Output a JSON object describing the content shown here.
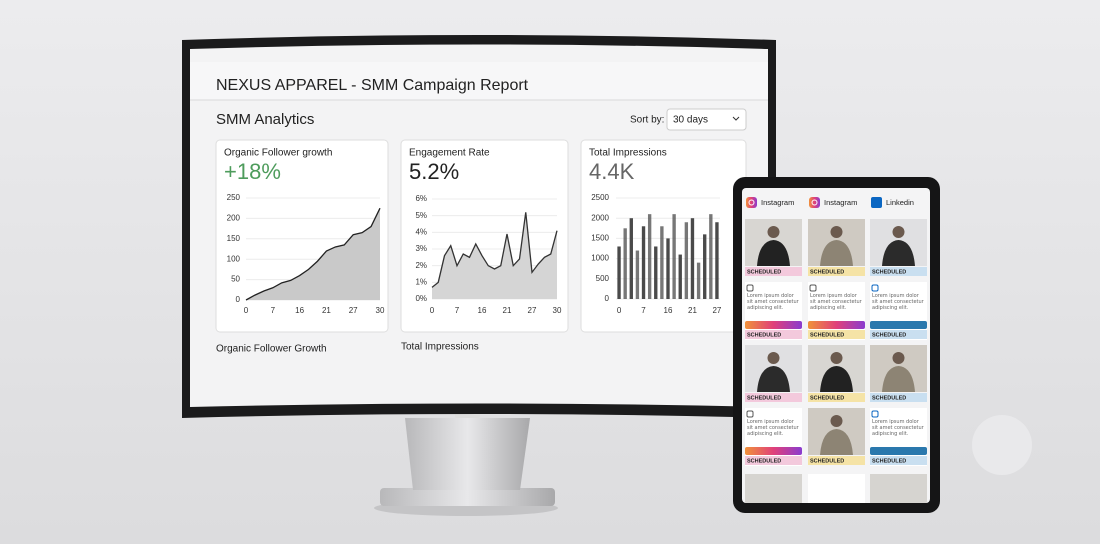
{
  "header": {
    "title": "NEXUS APPAREL - SMM Campaign Report",
    "section": "SMM Analytics",
    "sort_label": "Sort by:",
    "sort_value": "30 days"
  },
  "chart_data": [
    {
      "type": "area",
      "title": "Organic Follower growth",
      "headline": "+18%",
      "headline_color": "#4e9c5c",
      "color": "#222222",
      "fill": "#c9c9c9",
      "categories": [
        "0",
        null,
        null,
        "7",
        null,
        null,
        "16",
        null,
        null,
        "21",
        null,
        null,
        "27",
        null,
        null,
        "30"
      ],
      "values": [
        0,
        12,
        22,
        30,
        42,
        48,
        60,
        75,
        95,
        120,
        130,
        135,
        160,
        165,
        180,
        225
      ],
      "ylim": [
        0,
        250
      ],
      "yticks": [
        0,
        50,
        100,
        150,
        200,
        250
      ],
      "grid": true
    },
    {
      "type": "area",
      "title": "Engagement Rate",
      "headline": "5.2%",
      "headline_color": "#222222",
      "color": "#333333",
      "fill": "#d5d5d5",
      "categories": [
        "0",
        null,
        null,
        null,
        "7",
        null,
        null,
        null,
        "16",
        null,
        null,
        null,
        "21",
        null,
        null,
        null,
        "27",
        null,
        null,
        null,
        "30"
      ],
      "values": [
        0.7,
        1.0,
        2.6,
        3.2,
        2.0,
        2.7,
        2.5,
        3.3,
        2.6,
        2.0,
        1.8,
        2.0,
        3.9,
        2.0,
        2.4,
        5.2,
        1.6,
        2.1,
        2.5,
        2.7,
        4.1
      ],
      "ylim": [
        0,
        6
      ],
      "yticks": [
        {
          "value": 0,
          "label": "0%"
        },
        {
          "value": 1,
          "label": "1%"
        },
        {
          "value": 2,
          "label": "2%"
        },
        {
          "value": 3,
          "label": "3%"
        },
        {
          "value": 4,
          "label": "4%"
        },
        {
          "value": 5,
          "label": "5%"
        },
        {
          "value": 6,
          "label": "6%"
        }
      ],
      "grid": true
    },
    {
      "type": "bar",
      "title": "Total Impressions",
      "headline": "4.4K",
      "headline_color": "#666666",
      "color": "#4a4a4a",
      "categories": [
        "0",
        null,
        null,
        null,
        "7",
        null,
        null,
        null,
        "16",
        null,
        null,
        null,
        "21",
        null,
        null,
        null,
        "27"
      ],
      "values": [
        1300,
        1750,
        2000,
        1200,
        1800,
        2100,
        1300,
        1800,
        1500,
        2100,
        1100,
        1900,
        2000,
        900,
        1600,
        2100,
        1900
      ],
      "ylim": [
        0,
        2500
      ],
      "yticks": [
        0,
        500,
        1000,
        1500,
        2000,
        2500
      ],
      "grid": true
    }
  ],
  "captions": [
    "Organic Follower Growth",
    "Total Impressions"
  ],
  "tablet": {
    "columns": [
      {
        "platform": "Instagram",
        "items": [
          {
            "status": "SCHEDULED"
          },
          {
            "caption": "Lorem ipsum dolor sit amet consectetur adipiscing elit.",
            "status": "SCHEDULED"
          },
          {
            "status": "SCHEDULED"
          },
          {
            "caption": "Lorem ipsum dolor sit amet consectetur adipiscing elit.",
            "status": "SCHEDULED"
          }
        ]
      },
      {
        "platform": "Instagram",
        "items": [
          {
            "status": "SCHEDULED"
          },
          {
            "caption": "Lorem ipsum dolor sit amet consectetur adipiscing elit.",
            "status": "SCHEDULED"
          },
          {
            "status": "SCHEDULED"
          },
          {
            "status": "SCHEDULED"
          }
        ]
      },
      {
        "platform": "Linkedin",
        "items": [
          {
            "status": "SCHEDULED"
          },
          {
            "caption": "Lorem ipsum dolor sit amet consectetur adipiscing elit.",
            "status": "SCHEDULED"
          },
          {
            "status": "SCHEDULED"
          },
          {
            "caption": "Lorem ipsum dolor sit amet consectetur adipiscing elit.",
            "status": "SCHEDULED"
          }
        ]
      }
    ]
  }
}
